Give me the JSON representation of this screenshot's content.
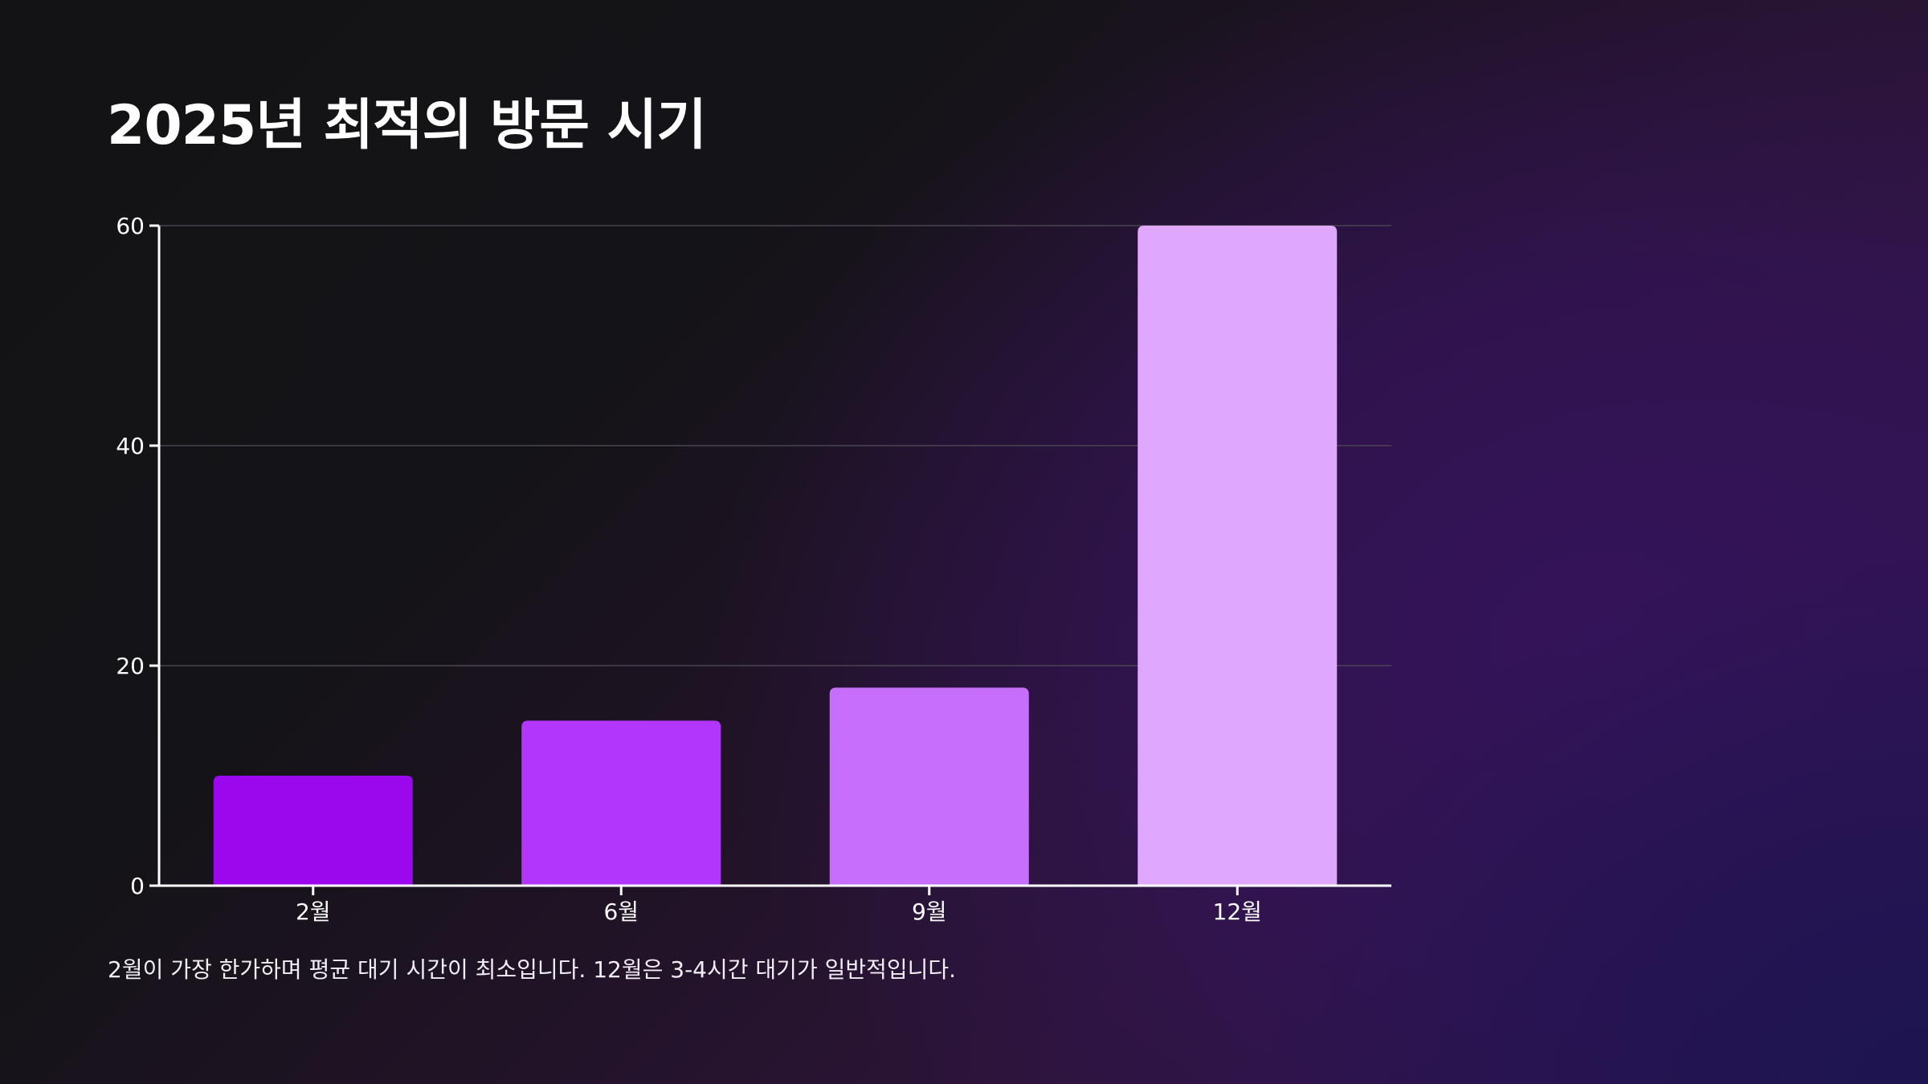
{
  "page": {
    "title": "2025년 최적의 방문 시기",
    "caption": "2월이 가장 한가하며 평균 대기 시간이 최소입니다. 12월은 3-4시간 대기가 일반적입니다."
  },
  "chart_data": {
    "type": "bar",
    "title": "",
    "xlabel": "",
    "ylabel": "",
    "categories": [
      "2월",
      "6월",
      "9월",
      "12월"
    ],
    "values": [
      10,
      15,
      18,
      60
    ],
    "bar_colors": [
      "#9b08ee",
      "#b336fd",
      "#c76efc",
      "#dfa8fe"
    ],
    "ylim": [
      0,
      60
    ],
    "yticks": [
      0,
      20,
      40,
      60
    ],
    "grid": true,
    "legend": "none"
  },
  "colors": {
    "grid": "#4a4452",
    "axis": "#ffffff",
    "text": "#ffffff"
  }
}
